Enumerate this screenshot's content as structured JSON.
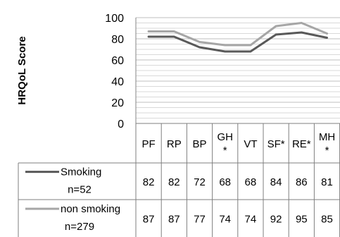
{
  "chart_data": {
    "type": "line",
    "ylabel": "HRQoL Score",
    "ylim": [
      0,
      100
    ],
    "yticks": [
      0,
      20,
      40,
      60,
      80,
      100
    ],
    "grid": true,
    "categories": [
      "PF",
      "RP",
      "BP",
      "GH *",
      "VT",
      "SF*",
      "RE*",
      "MH *"
    ],
    "series": [
      {
        "name": "Smoking",
        "n_label": "n=52",
        "color": "#595959",
        "values": [
          82,
          82,
          72,
          68,
          68,
          84,
          86,
          81
        ]
      },
      {
        "name": "non smoking",
        "n_label": "n=279",
        "color": "#a6a6a6",
        "values": [
          87,
          87,
          77,
          74,
          74,
          92,
          95,
          85
        ]
      }
    ],
    "legend": "data-table-left"
  }
}
